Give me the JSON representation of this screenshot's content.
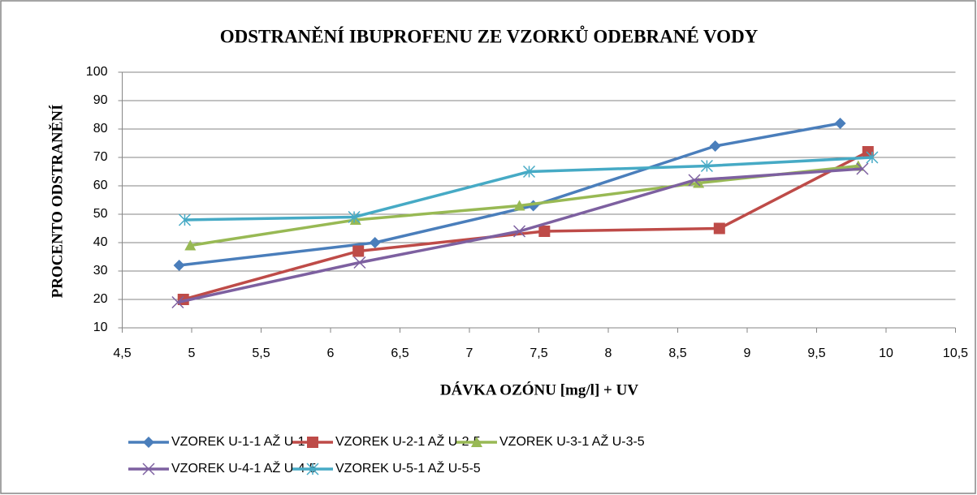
{
  "chart_data": {
    "type": "line",
    "title": "ODSTRANĚNÍ IBUPROFENU ZE VZORKŮ ODEBRANÉ VODY",
    "x_label": "DÁVKA OZÓNU [mg/l] + UV",
    "y_label": "PROCENTO ODSTRANĚNÍ",
    "xlim": [
      4.5,
      10.5
    ],
    "xticks": [
      {
        "value": 4.5,
        "label": "4,5"
      },
      5,
      {
        "value": 5.5,
        "label": "5,5"
      },
      6,
      {
        "value": 6.5,
        "label": "6,5"
      },
      7,
      {
        "value": 7.5,
        "label": "7,5"
      },
      8,
      {
        "value": 8.5,
        "label": "8,5"
      },
      9,
      {
        "value": 9.5,
        "label": "9,5"
      },
      10,
      {
        "value": 10.5,
        "label": "10,5"
      }
    ],
    "ylim": [
      10,
      100
    ],
    "yticks": [
      10,
      20,
      30,
      40,
      50,
      60,
      70,
      80,
      90,
      100
    ],
    "grid": true,
    "legend": "bottom",
    "series": [
      {
        "name": "VZOREK U-1-1 AŽ U-1-5",
        "color": "#4a7ebb",
        "marker": "diamond",
        "x": [
          4.91,
          6.32,
          7.46,
          8.77,
          9.67
        ],
        "values": [
          32,
          40,
          53,
          74,
          82
        ]
      },
      {
        "name": "VZOREK U-2-1 AŽ U-2-5",
        "color": "#be4b48",
        "marker": "square",
        "x": [
          4.94,
          6.2,
          7.54,
          8.8,
          9.87
        ],
        "values": [
          20,
          37,
          44,
          45,
          72
        ]
      },
      {
        "name": "VZOREK U-3-1 AŽ U-3-5",
        "color": "#98b954",
        "marker": "triangle",
        "x": [
          4.99,
          6.18,
          7.36,
          8.65,
          9.8
        ],
        "values": [
          39,
          48,
          53,
          61,
          67
        ]
      },
      {
        "name": "VZOREK U-4-1 AŽ U-4-5",
        "color": "#7d60a0",
        "marker": "x",
        "x": [
          4.9,
          6.21,
          7.36,
          8.62,
          9.83
        ],
        "values": [
          19,
          33,
          44,
          62,
          66
        ]
      },
      {
        "name": "VZOREK U-5-1 AŽ U-5-5",
        "color": "#46aac5",
        "marker": "star",
        "x": [
          4.95,
          6.17,
          7.43,
          8.71,
          9.9
        ],
        "values": [
          48,
          49,
          65,
          67,
          70
        ]
      }
    ]
  }
}
